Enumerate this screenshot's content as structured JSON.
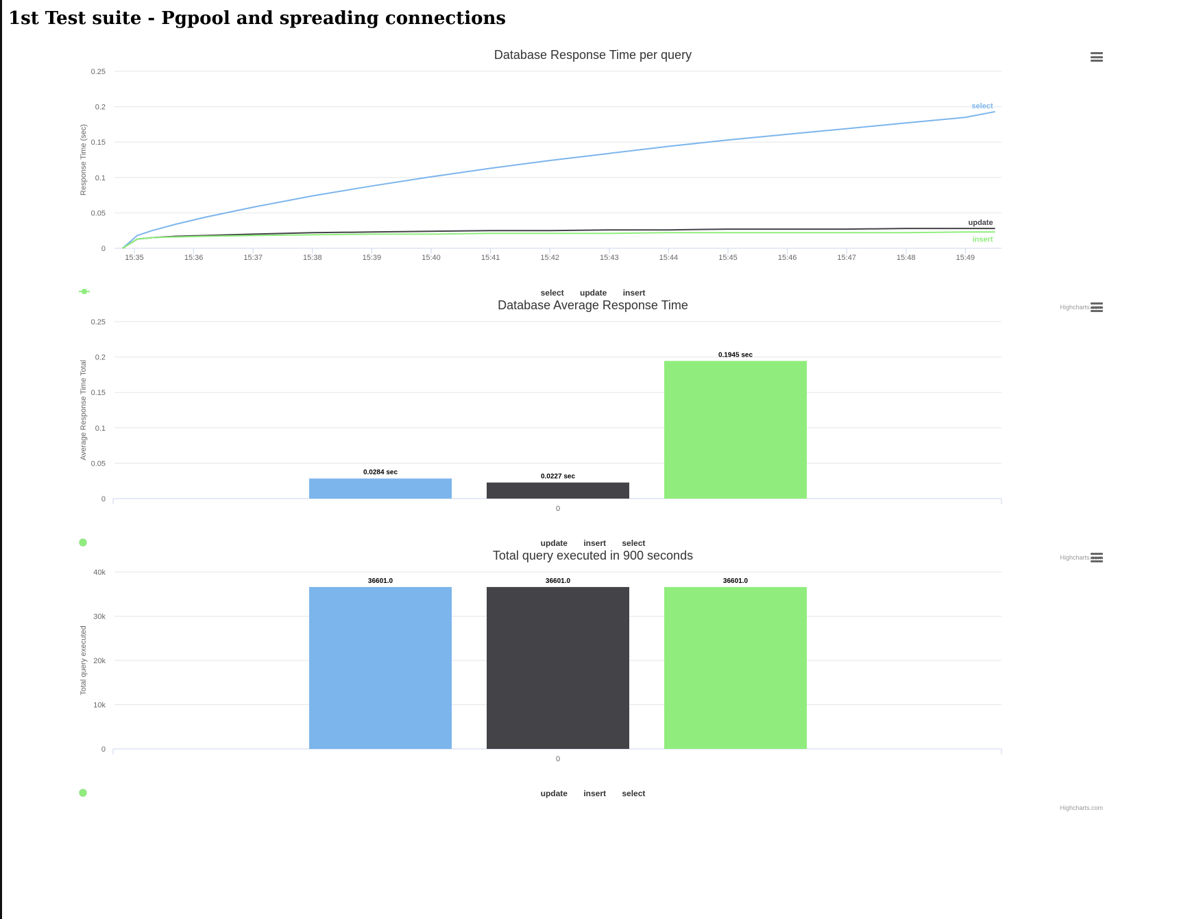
{
  "page": {
    "title": "1st Test suite - Pgpool and spreading connections"
  },
  "chart_data": [
    {
      "type": "line",
      "title": "Database Response Time per query",
      "ylabel": "Response Time (sec)",
      "xlabel": "",
      "ylim": [
        0,
        0.25
      ],
      "yticks": [
        "0",
        "0.05",
        "0.1",
        "0.15",
        "0.2",
        "0.25"
      ],
      "xticks": [
        "15:35",
        "15:36",
        "15:37",
        "15:38",
        "15:39",
        "15:40",
        "15:41",
        "15:42",
        "15:43",
        "15:44",
        "15:45",
        "15:46",
        "15:47",
        "15:48",
        "15:49"
      ],
      "x_minutes": [
        -0.2,
        0.05,
        0.3,
        0.7,
        1.2,
        2,
        3,
        4,
        5,
        6,
        7,
        8,
        9,
        10,
        11,
        12,
        13,
        14,
        14.5
      ],
      "series": [
        {
          "name": "select",
          "color": "#7cb5ec",
          "values": [
            0,
            0.018,
            0.025,
            0.034,
            0.044,
            0.058,
            0.074,
            0.088,
            0.101,
            0.113,
            0.124,
            0.134,
            0.144,
            0.153,
            0.161,
            0.169,
            0.177,
            0.185,
            0.193
          ]
        },
        {
          "name": "update",
          "color": "#434348",
          "values": [
            0,
            0.013,
            0.015,
            0.017,
            0.018,
            0.02,
            0.022,
            0.023,
            0.024,
            0.025,
            0.025,
            0.026,
            0.026,
            0.027,
            0.027,
            0.027,
            0.028,
            0.028,
            0.028
          ]
        },
        {
          "name": "insert",
          "color": "#90ed7d",
          "values": [
            0,
            0.013,
            0.015,
            0.016,
            0.017,
            0.018,
            0.019,
            0.02,
            0.02,
            0.021,
            0.021,
            0.021,
            0.022,
            0.022,
            0.022,
            0.022,
            0.022,
            0.023,
            0.023
          ]
        }
      ],
      "legend": [
        "select",
        "update",
        "insert"
      ],
      "credits": "Highcharts.com"
    },
    {
      "type": "bar",
      "title": "Database Average Response Time",
      "ylabel": "Average Response Time Total",
      "ylim": [
        0,
        0.25
      ],
      "yticks": [
        "0",
        "0.05",
        "0.1",
        "0.15",
        "0.2",
        "0.25"
      ],
      "categories": [
        "0"
      ],
      "series": [
        {
          "name": "update",
          "color": "#7cb5ec",
          "values": [
            0.0284
          ],
          "label": "0.0284 sec"
        },
        {
          "name": "insert",
          "color": "#434348",
          "values": [
            0.0227
          ],
          "label": "0.0227 sec"
        },
        {
          "name": "select",
          "color": "#90ed7d",
          "values": [
            0.1945
          ],
          "label": "0.1945 sec"
        }
      ],
      "legend": [
        "update",
        "insert",
        "select"
      ],
      "credits": "Highcharts.com"
    },
    {
      "type": "bar",
      "title": "Total query executed in 900 seconds",
      "ylabel": "Total query executed",
      "ylim": [
        0,
        40000
      ],
      "yticks": [
        "0",
        "10k",
        "20k",
        "30k",
        "40k"
      ],
      "categories": [
        "0"
      ],
      "series": [
        {
          "name": "update",
          "color": "#7cb5ec",
          "values": [
            36601
          ],
          "label": "36601.0"
        },
        {
          "name": "insert",
          "color": "#434348",
          "values": [
            36601
          ],
          "label": "36601.0"
        },
        {
          "name": "select",
          "color": "#90ed7d",
          "values": [
            36601
          ],
          "label": "36601.0"
        }
      ],
      "legend": [
        "update",
        "insert",
        "select"
      ],
      "credits": "Highcharts.com"
    }
  ]
}
